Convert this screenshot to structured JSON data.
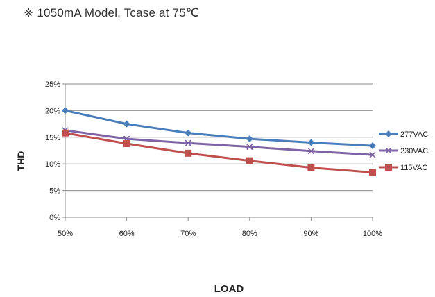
{
  "caption": "※ 1050mA Model, Tcase at 75℃",
  "chart_data": {
    "type": "line",
    "title": "",
    "xlabel": "LOAD",
    "ylabel": "THD",
    "categories": [
      "50%",
      "60%",
      "70%",
      "80%",
      "90%",
      "100%"
    ],
    "y_ticks": [
      "0%",
      "5%",
      "10%",
      "15%",
      "20%",
      "25%"
    ],
    "ylim": [
      0,
      25
    ],
    "y_unit": "%",
    "grid": "horizontal",
    "legend_position": "right",
    "series": [
      {
        "name": "277VAC",
        "values": [
          20,
          17.5,
          15.8,
          14.7,
          14.0,
          13.4
        ],
        "color": "#4a7ebb",
        "marker": "diamond"
      },
      {
        "name": "230VAC",
        "values": [
          16.3,
          14.7,
          13.9,
          13.2,
          12.4,
          11.7
        ],
        "color": "#7e63a6",
        "marker": "x"
      },
      {
        "name": "115VAC",
        "values": [
          15.8,
          13.8,
          12.0,
          10.6,
          9.3,
          8.4
        ],
        "color": "#c0504d",
        "marker": "square"
      }
    ]
  }
}
